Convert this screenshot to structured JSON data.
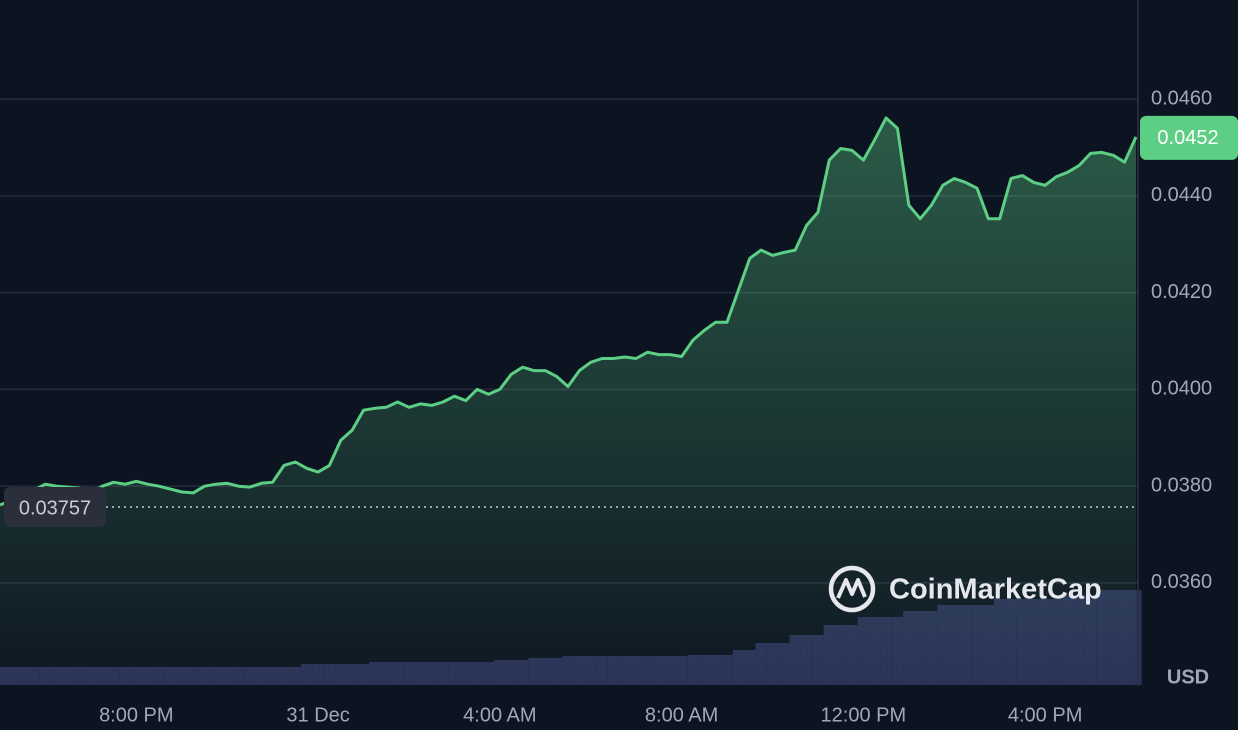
{
  "chart_data": {
    "type": "line",
    "color": "#5ccf85",
    "volume_color": "#2a3157",
    "grid": true,
    "currency": "USD",
    "watermark": "CoinMarketCap",
    "open_price": 0.03757,
    "last_price": 0.0452,
    "ylim": [
      0.03389,
      0.04805
    ],
    "yticks": [
      {
        "value": 0.036,
        "label": "0.0360"
      },
      {
        "value": 0.038,
        "label": "0.0380"
      },
      {
        "value": 0.04,
        "label": "0.0400"
      },
      {
        "value": 0.042,
        "label": "0.0420"
      },
      {
        "value": 0.044,
        "label": "0.0440"
      },
      {
        "value": 0.046,
        "label": "0.0460"
      }
    ],
    "categories": [
      null,
      null,
      null,
      null,
      null,
      null,
      null,
      null,
      null,
      null,
      null,
      null,
      "8:00 PM",
      null,
      null,
      null,
      null,
      null,
      null,
      null,
      null,
      null,
      null,
      null,
      null,
      null,
      null,
      null,
      "31 Dec",
      null,
      null,
      null,
      null,
      null,
      null,
      null,
      null,
      null,
      null,
      null,
      null,
      null,
      null,
      null,
      "4:00 AM",
      null,
      null,
      null,
      null,
      null,
      null,
      null,
      null,
      null,
      null,
      null,
      null,
      null,
      null,
      null,
      "8:00 AM",
      null,
      null,
      null,
      null,
      null,
      null,
      null,
      null,
      null,
      null,
      null,
      null,
      null,
      null,
      null,
      "12:00 PM",
      null,
      null,
      null,
      null,
      null,
      null,
      null,
      null,
      null,
      null,
      null,
      null,
      null,
      null,
      null,
      "4:00 PM",
      null,
      null,
      null,
      null,
      null,
      null,
      null,
      null
    ],
    "values": [
      0.03761,
      0.03771,
      0.03781,
      0.03792,
      0.03804,
      0.038,
      0.03798,
      0.03796,
      0.03786,
      0.038,
      0.03808,
      0.03804,
      0.0381,
      0.03804,
      0.038,
      0.03794,
      0.03788,
      0.03786,
      0.038,
      0.03804,
      0.03806,
      0.038,
      0.03798,
      0.03806,
      0.03808,
      0.03843,
      0.0385,
      0.03837,
      0.03829,
      0.03843,
      0.03895,
      0.03916,
      0.03957,
      0.03961,
      0.03963,
      0.03974,
      0.03963,
      0.0397,
      0.03967,
      0.03974,
      0.03986,
      0.03977,
      0.04,
      0.0399,
      0.04,
      0.04031,
      0.04046,
      0.04039,
      0.04039,
      0.04027,
      0.04006,
      0.04039,
      0.04056,
      0.04064,
      0.04064,
      0.04067,
      0.04064,
      0.04077,
      0.04072,
      0.04072,
      0.04068,
      0.04102,
      0.04122,
      0.04139,
      0.04139,
      0.04205,
      0.04271,
      0.04288,
      0.04277,
      0.04283,
      0.04288,
      0.04339,
      0.04366,
      0.04474,
      0.04498,
      0.04494,
      0.04474,
      0.04516,
      0.04561,
      0.0454,
      0.04381,
      0.04353,
      0.04381,
      0.04422,
      0.04436,
      0.04428,
      0.04416,
      0.04353,
      0.04353,
      0.04436,
      0.04442,
      0.04428,
      0.04422,
      0.0444,
      0.04449,
      0.04463,
      0.04488,
      0.0449,
      0.04484,
      0.0447,
      0.04522
    ],
    "volume": [
      18,
      18,
      18,
      18,
      18,
      18,
      18,
      18,
      18,
      18,
      18,
      18,
      18,
      18,
      18,
      18,
      18,
      18,
      18,
      18,
      18,
      18,
      18,
      18,
      18,
      18,
      18,
      21,
      21,
      21,
      21,
      21,
      21,
      23,
      23,
      23,
      23,
      23,
      23,
      23,
      23,
      23,
      23,
      23,
      25,
      25,
      25,
      27,
      27,
      27,
      29,
      29,
      29,
      29,
      29,
      29,
      29,
      29,
      29,
      29,
      29,
      30,
      30,
      30,
      30,
      35,
      35,
      42,
      42,
      42,
      50,
      50,
      50,
      60,
      60,
      60,
      68,
      68,
      68,
      68,
      74,
      74,
      74,
      80,
      80,
      80,
      80,
      80,
      86,
      86,
      86,
      86,
      86,
      86,
      90,
      90,
      90,
      95,
      95,
      95,
      95
    ]
  }
}
